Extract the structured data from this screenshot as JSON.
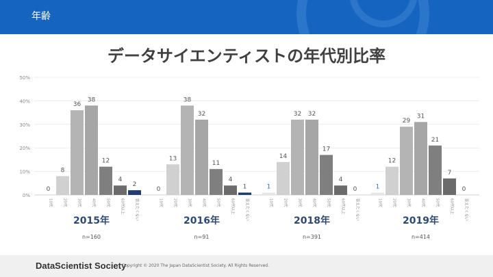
{
  "header": {
    "title": "年齢"
  },
  "footer": {
    "brand": "DataScientist Society",
    "copyright": "Copyright © 2020 The Japan DataScientist Society. All Rights Reserved."
  },
  "chart_data": {
    "type": "bar",
    "title": "データサイエンティストの年代別比率",
    "ylim": [
      0,
      50
    ],
    "yticks": [
      "0%",
      "10%",
      "20%",
      "30%",
      "40%",
      "50%"
    ],
    "grid": true,
    "categories": [
      "10代",
      "20代",
      "30代",
      "40代",
      "50代",
      "60代以上",
      "答えたくない"
    ],
    "colors": [
      "#e6e6e6",
      "#d0d0d0",
      "#b4b4b4",
      "#a6a6a6",
      "#7f7f7f",
      "#6b6b6b",
      "#1f3d73"
    ],
    "groups": [
      {
        "label": "2015年",
        "n": "n=160",
        "values": [
          0,
          8,
          36,
          38,
          12,
          4,
          2
        ]
      },
      {
        "label": "2016年",
        "n": "n=91",
        "values": [
          0,
          13,
          38,
          32,
          11,
          4,
          1
        ]
      },
      {
        "label": "2018年",
        "n": "n=391",
        "values": [
          1,
          14,
          32,
          32,
          17,
          4,
          0
        ]
      },
      {
        "label": "2019年",
        "n": "n=414",
        "values": [
          1,
          12,
          29,
          31,
          21,
          7,
          0
        ]
      }
    ]
  }
}
